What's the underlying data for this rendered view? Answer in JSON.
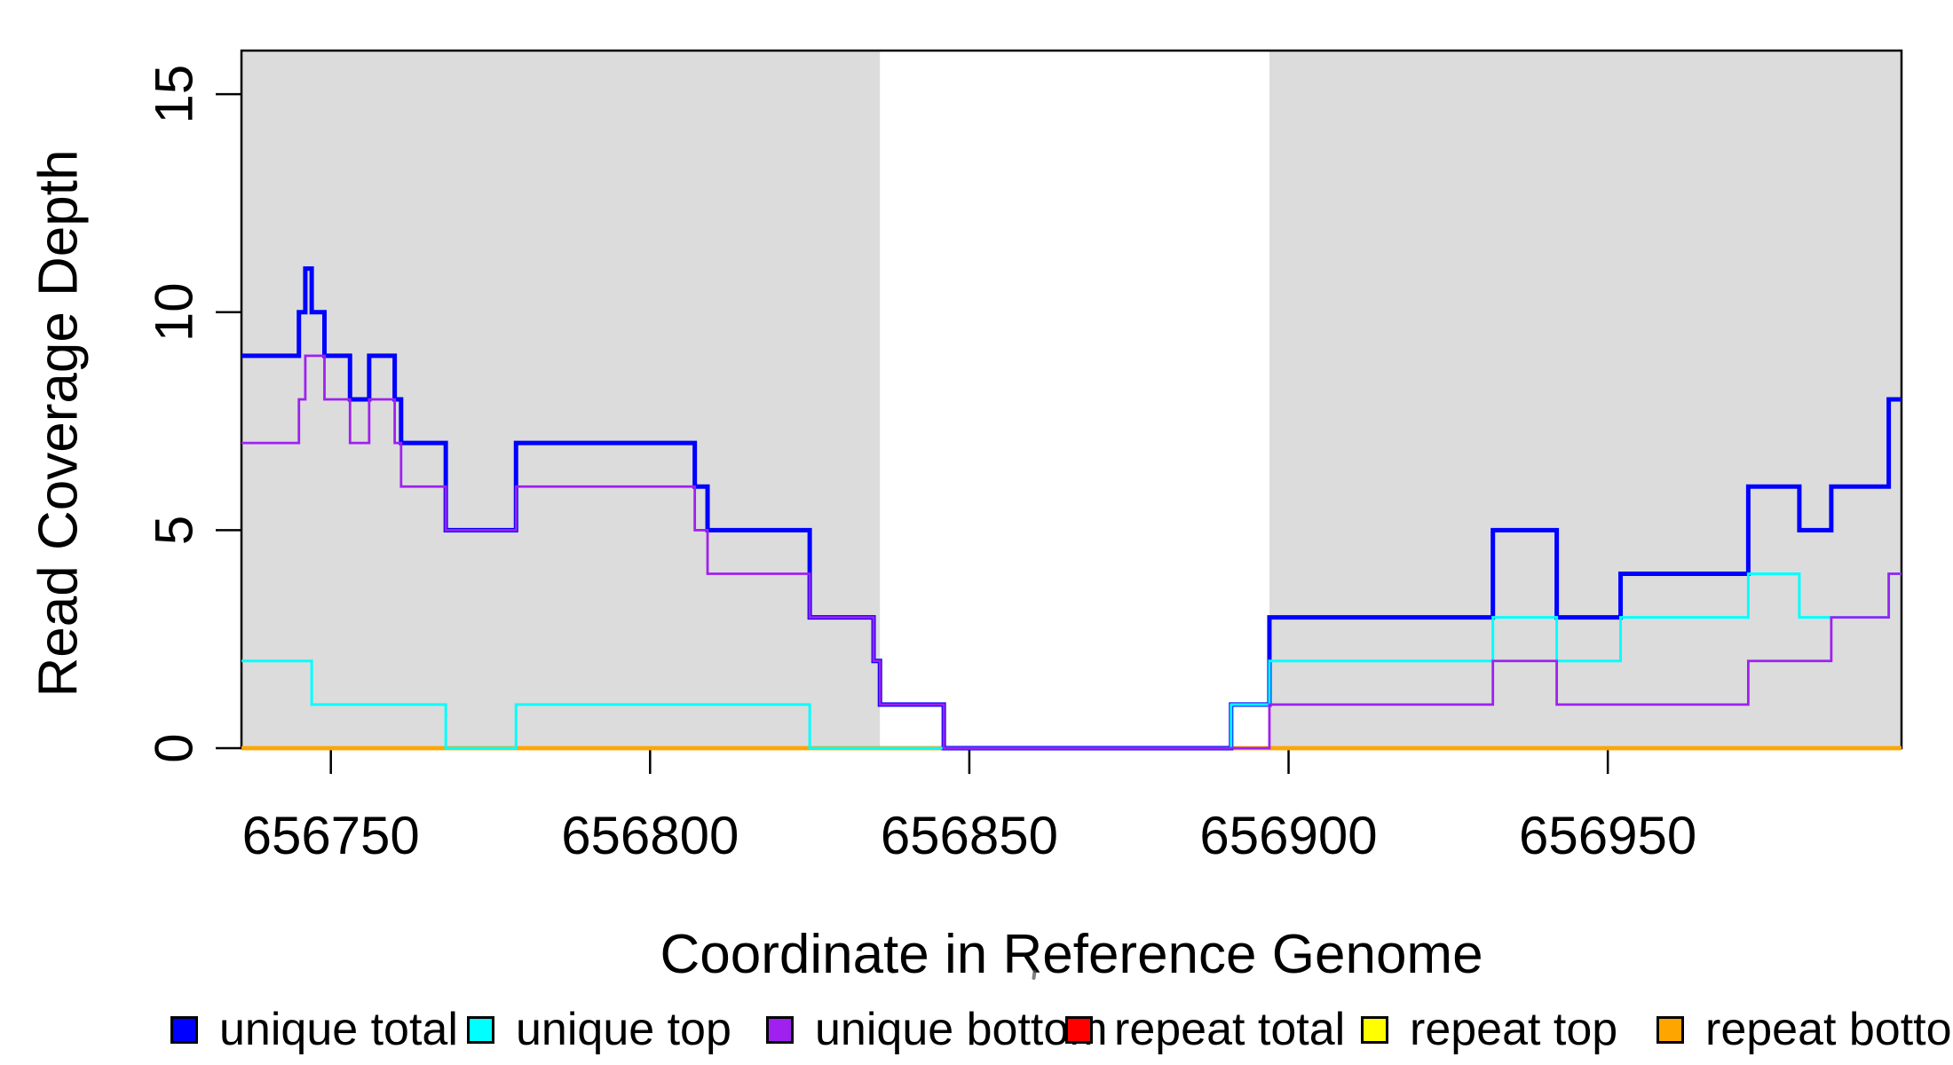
{
  "chart_data": {
    "type": "line",
    "subtype": "step",
    "title": "",
    "xlabel": "Coordinate in Reference Genome",
    "ylabel": "Read Coverage Depth",
    "xlim": [
      656736,
      656996
    ],
    "ylim": [
      0,
      16
    ],
    "x_ticks": [
      656750,
      656800,
      656850,
      656900,
      656950
    ],
    "y_ticks": [
      0,
      5,
      10,
      15
    ],
    "grid": false,
    "legend_position": "bottom",
    "plot_bg": "#ffffff",
    "region_color": "#DCDCDC",
    "background_regions": [
      {
        "x0": 656736,
        "x1": 656836
      },
      {
        "x0": 656897,
        "x1": 656996
      }
    ],
    "series": [
      {
        "name": "repeat total",
        "color": "#FF0000",
        "width": 3.5,
        "breakpoints": [
          [
            656736,
            0
          ]
        ]
      },
      {
        "name": "repeat top",
        "color": "#FFFF00",
        "width": 3.5,
        "breakpoints": [
          [
            656736,
            0
          ]
        ]
      },
      {
        "name": "repeat bottom",
        "color": "#FFA500",
        "width": 4.7,
        "breakpoints": [
          [
            656736,
            0
          ]
        ]
      },
      {
        "name": "unique total",
        "color": "#0000FF",
        "width": 5,
        "breakpoints": [
          [
            656736,
            9
          ],
          [
            656745,
            10
          ],
          [
            656746,
            11
          ],
          [
            656747,
            10
          ],
          [
            656749,
            9
          ],
          [
            656753,
            8
          ],
          [
            656756,
            9
          ],
          [
            656760,
            8
          ],
          [
            656761,
            7
          ],
          [
            656768,
            5
          ],
          [
            656779,
            7
          ],
          [
            656807,
            6
          ],
          [
            656809,
            5
          ],
          [
            656825,
            3
          ],
          [
            656835,
            2
          ],
          [
            656836,
            1
          ],
          [
            656846,
            0
          ],
          [
            656891,
            1
          ],
          [
            656897,
            3
          ],
          [
            656932,
            5
          ],
          [
            656942,
            3
          ],
          [
            656952,
            4
          ],
          [
            656972,
            6
          ],
          [
            656980,
            5
          ],
          [
            656985,
            6
          ],
          [
            656994,
            8
          ]
        ]
      },
      {
        "name": "unique top",
        "color": "#00FFFF",
        "width": 3,
        "breakpoints": [
          [
            656736,
            2
          ],
          [
            656747,
            1
          ],
          [
            656768,
            0
          ],
          [
            656779,
            1
          ],
          [
            656825,
            0
          ],
          [
            656891,
            1
          ],
          [
            656897,
            2
          ],
          [
            656932,
            3
          ],
          [
            656942,
            2
          ],
          [
            656952,
            3
          ],
          [
            656972,
            4
          ],
          [
            656980,
            3
          ],
          [
            656994,
            4
          ]
        ]
      },
      {
        "name": "unique bottom",
        "color": "#A020F0",
        "width": 2.8,
        "breakpoints": [
          [
            656736,
            7
          ],
          [
            656745,
            8
          ],
          [
            656746,
            9
          ],
          [
            656749,
            8
          ],
          [
            656753,
            7
          ],
          [
            656756,
            8
          ],
          [
            656760,
            7
          ],
          [
            656761,
            6
          ],
          [
            656768,
            5
          ],
          [
            656779,
            6
          ],
          [
            656807,
            5
          ],
          [
            656809,
            4
          ],
          [
            656825,
            3
          ],
          [
            656835,
            2
          ],
          [
            656836,
            1
          ],
          [
            656846,
            0
          ],
          [
            656897,
            1
          ],
          [
            656932,
            2
          ],
          [
            656942,
            1
          ],
          [
            656972,
            2
          ],
          [
            656985,
            3
          ],
          [
            656994,
            4
          ]
        ]
      }
    ],
    "legend": [
      {
        "label": "unique total",
        "color": "#0000FF"
      },
      {
        "label": "unique top",
        "color": "#00FFFF"
      },
      {
        "label": "unique bottom",
        "color": "#A020F0"
      },
      {
        "label": "repeat total",
        "color": "#FF0000"
      },
      {
        "label": "repeat top",
        "color": "#FFFF00"
      },
      {
        "label": "repeat bottom",
        "color": "#FFA500"
      }
    ]
  }
}
